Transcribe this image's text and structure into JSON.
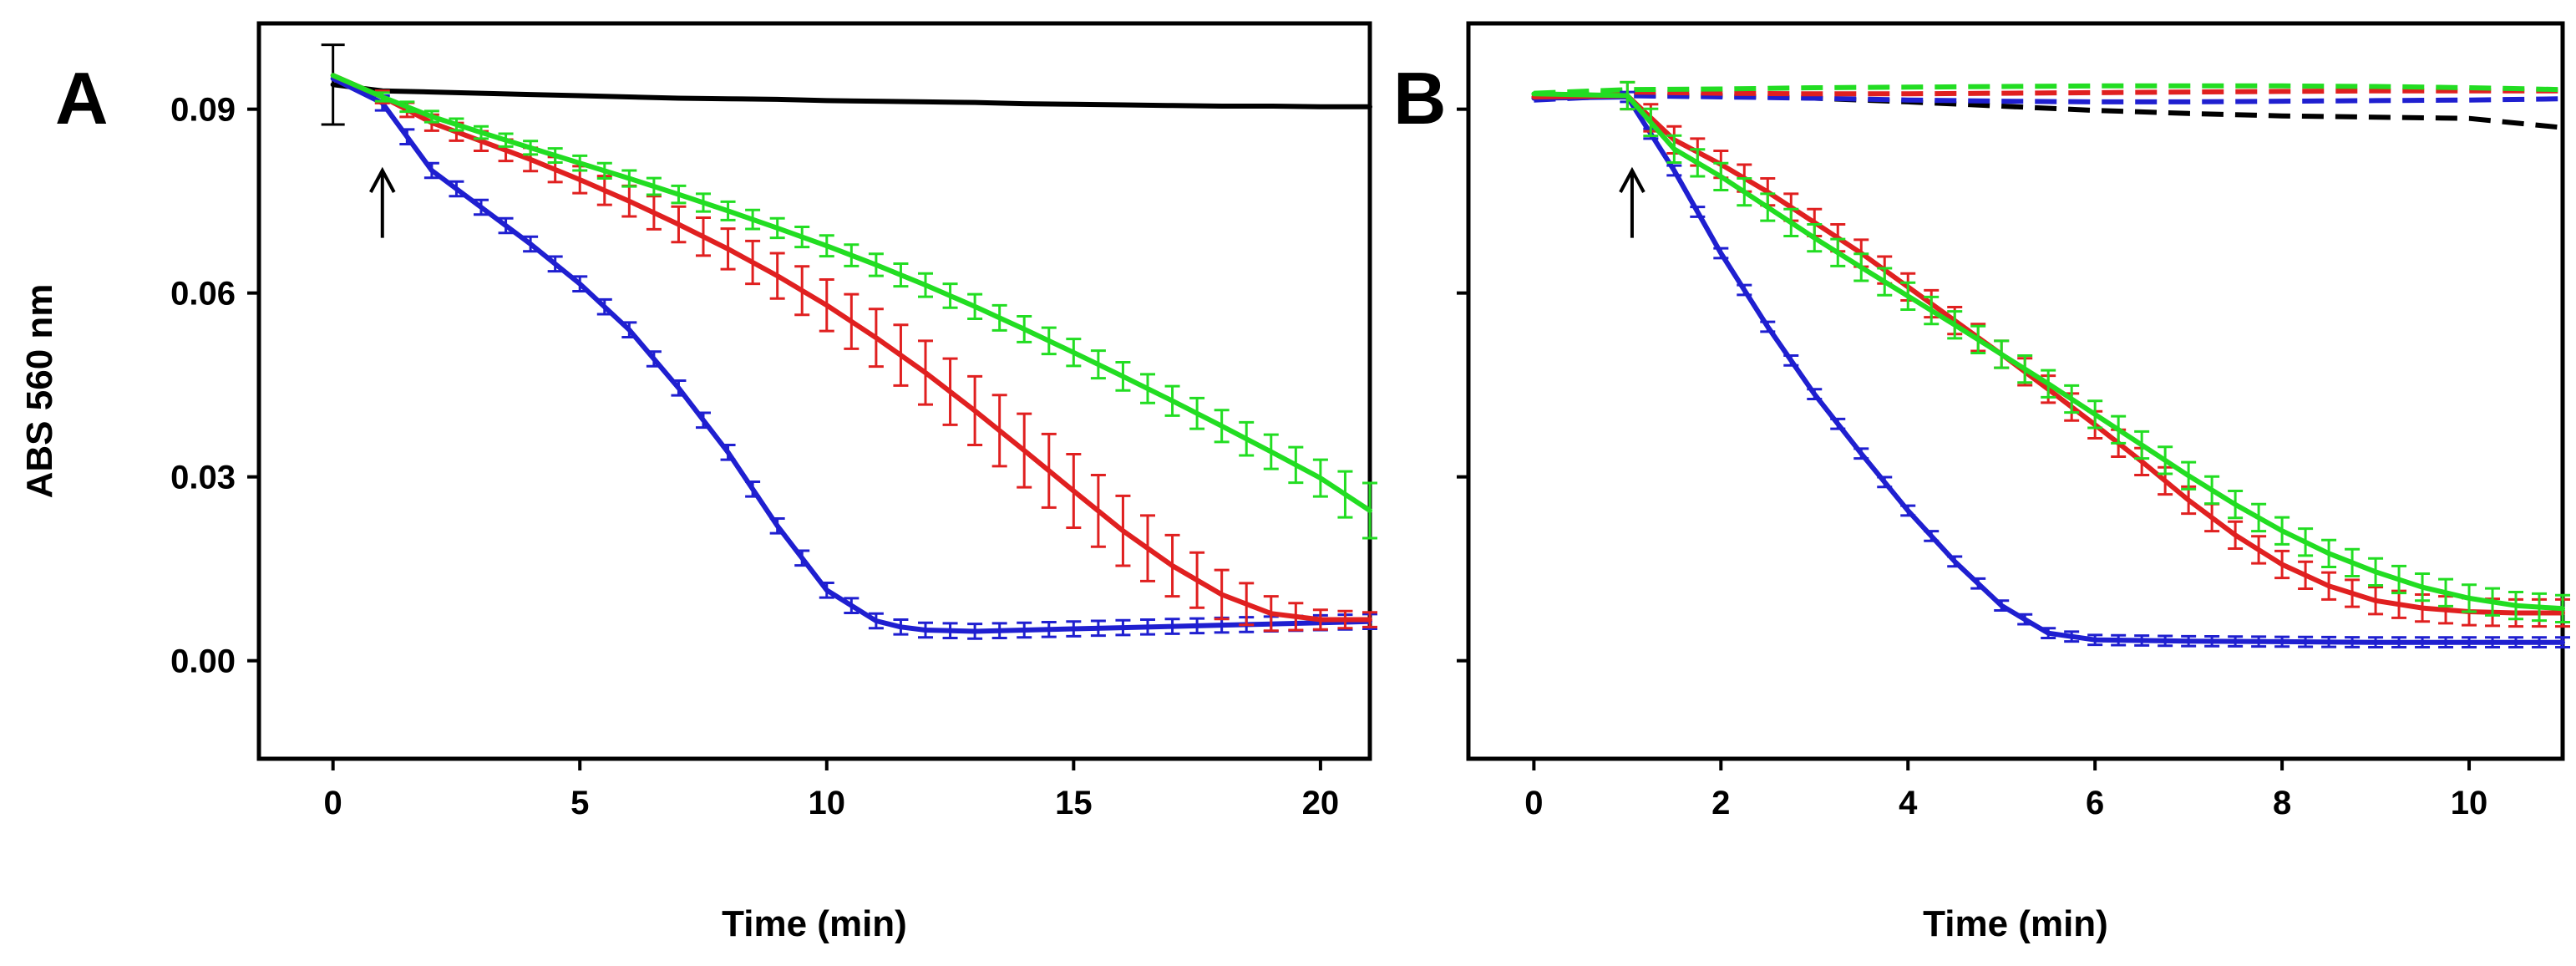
{
  "chart_data": [
    {
      "panel": "A",
      "type": "line",
      "xlabel": "Time (min)",
      "ylabel": "ABS 560 nm",
      "xlim": [
        -1.5,
        21
      ],
      "ylim": [
        -0.016,
        0.104
      ],
      "xticks": [
        0,
        5,
        10,
        15,
        20
      ],
      "xtick_labels": [
        "0",
        "5",
        "10",
        "15",
        "20"
      ],
      "yticks": [
        0.0,
        0.03,
        0.06,
        0.09
      ],
      "ytick_labels": [
        "0.00",
        "0.03",
        "0.06",
        "0.09"
      ],
      "annotation": {
        "type": "arrow",
        "x": 1,
        "y_from": 0.069,
        "y_to": 0.08
      },
      "series": [
        {
          "name": "black",
          "color": "#000000",
          "dashed": false,
          "errorbars": false,
          "x": [
            0,
            1,
            2,
            3,
            4,
            5,
            6,
            7,
            8,
            9,
            10,
            11,
            12,
            13,
            14,
            15,
            16,
            17,
            18,
            19,
            20,
            21
          ],
          "y": [
            0.094,
            0.093,
            0.0928,
            0.0926,
            0.0924,
            0.0922,
            0.092,
            0.0918,
            0.0917,
            0.0916,
            0.0914,
            0.0913,
            0.0912,
            0.0911,
            0.0909,
            0.0908,
            0.0907,
            0.0906,
            0.0905,
            0.0905,
            0.0904,
            0.0904
          ],
          "point_errors": [
            {
              "x": 0,
              "y": 0.094,
              "err": 0.0065
            }
          ]
        },
        {
          "name": "blue",
          "color": "#1f1fd0",
          "dashed": false,
          "errorbars": true,
          "x": [
            0,
            1,
            2,
            3,
            4,
            5,
            6,
            7,
            8,
            9,
            10,
            11,
            11.5,
            12,
            13,
            14,
            15,
            16,
            17,
            18,
            19,
            20,
            21
          ],
          "y": [
            0.095,
            0.091,
            0.08,
            0.074,
            0.068,
            0.0615,
            0.054,
            0.0445,
            0.034,
            0.022,
            0.0115,
            0.0065,
            0.0055,
            0.005,
            0.0048,
            0.005,
            0.0052,
            0.0054,
            0.0056,
            0.0058,
            0.006,
            0.0062,
            0.0064
          ],
          "err": 0.0012
        },
        {
          "name": "red",
          "color": "#e02020",
          "dashed": false,
          "errorbars": true,
          "x": [
            0,
            1,
            2,
            3,
            4,
            5,
            6,
            7,
            8,
            9,
            10,
            11,
            12,
            13,
            14,
            15,
            16,
            17,
            18,
            19,
            20,
            21
          ],
          "y": [
            0.0955,
            0.092,
            0.0878,
            0.0848,
            0.0818,
            0.0785,
            0.075,
            0.0712,
            0.0672,
            0.0628,
            0.058,
            0.0527,
            0.047,
            0.0408,
            0.0343,
            0.0277,
            0.0212,
            0.0155,
            0.0108,
            0.0077,
            0.0067,
            0.0067
          ],
          "err": [
            0.0004,
            0.001,
            0.0013,
            0.0016,
            0.0019,
            0.0022,
            0.0025,
            0.0029,
            0.0033,
            0.0037,
            0.0042,
            0.0047,
            0.0052,
            0.0056,
            0.006,
            0.006,
            0.0057,
            0.005,
            0.004,
            0.0028,
            0.0016,
            0.0012
          ]
        },
        {
          "name": "green",
          "color": "#22dd22",
          "dashed": false,
          "errorbars": true,
          "x": [
            0,
            1,
            2,
            3,
            4,
            5,
            6,
            7,
            8,
            9,
            10,
            11,
            12,
            13,
            14,
            15,
            16,
            17,
            18,
            19,
            20,
            21
          ],
          "y": [
            0.0955,
            0.092,
            0.0888,
            0.0862,
            0.0837,
            0.0812,
            0.0787,
            0.0761,
            0.0734,
            0.0706,
            0.0677,
            0.0646,
            0.0613,
            0.0578,
            0.0541,
            0.0503,
            0.0464,
            0.0424,
            0.0383,
            0.0341,
            0.0298,
            0.0245
          ],
          "err": [
            0.0004,
            0.0007,
            0.0009,
            0.001,
            0.0011,
            0.0012,
            0.0013,
            0.0014,
            0.0015,
            0.0016,
            0.0017,
            0.0018,
            0.0019,
            0.002,
            0.0021,
            0.0022,
            0.0023,
            0.0024,
            0.0026,
            0.0028,
            0.003,
            0.0045
          ]
        }
      ]
    },
    {
      "panel": "B",
      "type": "line",
      "xlabel": "Time (min)",
      "ylabel": "",
      "xlim": [
        -0.7,
        11
      ],
      "ylim": [
        -0.016,
        0.104
      ],
      "xticks": [
        0,
        2,
        4,
        6,
        8,
        10
      ],
      "xtick_labels": [
        "0",
        "2",
        "4",
        "6",
        "8",
        "10"
      ],
      "yticks": [
        0.0,
        0.03,
        0.06,
        0.09
      ],
      "ytick_labels": [],
      "annotation": {
        "type": "arrow",
        "x": 1.05,
        "y_from": 0.069,
        "y_to": 0.08
      },
      "series": [
        {
          "name": "black dashed",
          "color": "#000000",
          "dashed": true,
          "errorbars": false,
          "x": [
            0,
            1,
            2,
            3,
            4,
            5,
            6,
            7,
            8,
            9,
            10,
            11
          ],
          "y": [
            0.0918,
            0.0922,
            0.0922,
            0.0918,
            0.0912,
            0.0905,
            0.0898,
            0.0893,
            0.0889,
            0.0887,
            0.0885,
            0.087
          ]
        },
        {
          "name": "blue dashed",
          "color": "#1f1fd0",
          "dashed": true,
          "errorbars": false,
          "x": [
            0,
            1,
            2,
            3,
            4,
            5,
            6,
            7,
            8,
            9,
            10,
            11
          ],
          "y": [
            0.0915,
            0.0922,
            0.092,
            0.0918,
            0.0915,
            0.0913,
            0.0912,
            0.0912,
            0.0913,
            0.0914,
            0.0915,
            0.0917
          ]
        },
        {
          "name": "red dashed",
          "color": "#e02020",
          "dashed": true,
          "errorbars": false,
          "x": [
            0,
            1,
            2,
            3,
            4,
            5,
            6,
            7,
            8,
            9,
            10,
            11
          ],
          "y": [
            0.0922,
            0.0928,
            0.0926,
            0.0925,
            0.0925,
            0.0926,
            0.0927,
            0.0928,
            0.0929,
            0.093,
            0.093,
            0.093
          ]
        },
        {
          "name": "green dashed",
          "color": "#22dd22",
          "dashed": true,
          "errorbars": false,
          "x": [
            0,
            1,
            2,
            3,
            4,
            5,
            6,
            7,
            8,
            9,
            10,
            11
          ],
          "y": [
            0.0926,
            0.0932,
            0.0933,
            0.0935,
            0.0936,
            0.0937,
            0.0938,
            0.0938,
            0.0938,
            0.0937,
            0.0935,
            0.0932
          ]
        },
        {
          "name": "blue",
          "color": "#1f1fd0",
          "dashed": false,
          "errorbars": true,
          "x": [
            0,
            1,
            1.5,
            2,
            2.5,
            3,
            3.5,
            4,
            4.5,
            5,
            5.5,
            6,
            7,
            8,
            9,
            10,
            11
          ],
          "y": [
            0.0918,
            0.092,
            0.08,
            0.0665,
            0.0545,
            0.0435,
            0.0338,
            0.0245,
            0.0162,
            0.009,
            0.0045,
            0.0034,
            0.0032,
            0.0031,
            0.003,
            0.003,
            0.003
          ],
          "err": 0.0008
        },
        {
          "name": "red",
          "color": "#e02020",
          "dashed": false,
          "errorbars": true,
          "x": [
            0,
            1,
            1.5,
            2,
            2.5,
            3,
            3.5,
            4,
            4.5,
            5,
            5.5,
            6,
            6.5,
            7,
            7.5,
            8,
            8.5,
            9,
            9.5,
            10,
            10.5,
            11
          ],
          "y": [
            0.092,
            0.0922,
            0.085,
            0.081,
            0.0765,
            0.0715,
            0.0665,
            0.061,
            0.0555,
            0.05,
            0.0443,
            0.0385,
            0.0325,
            0.0262,
            0.0205,
            0.0157,
            0.0122,
            0.0098,
            0.0086,
            0.008,
            0.0078,
            0.0078
          ],
          "err": 0.0022
        },
        {
          "name": "green",
          "color": "#22dd22",
          "dashed": false,
          "errorbars": true,
          "x": [
            0,
            1,
            1.5,
            2,
            2.5,
            3,
            3.5,
            4,
            4.5,
            5,
            5.5,
            6,
            6.5,
            7,
            7.5,
            8,
            8.5,
            9,
            9.5,
            10,
            10.5,
            11
          ],
          "y": [
            0.0925,
            0.0922,
            0.0835,
            0.079,
            0.074,
            0.069,
            0.0642,
            0.0595,
            0.0548,
            0.05,
            0.0452,
            0.0402,
            0.0352,
            0.0302,
            0.0255,
            0.0212,
            0.0175,
            0.0145,
            0.012,
            0.0102,
            0.009,
            0.0085
          ],
          "err": 0.0022
        }
      ]
    }
  ]
}
